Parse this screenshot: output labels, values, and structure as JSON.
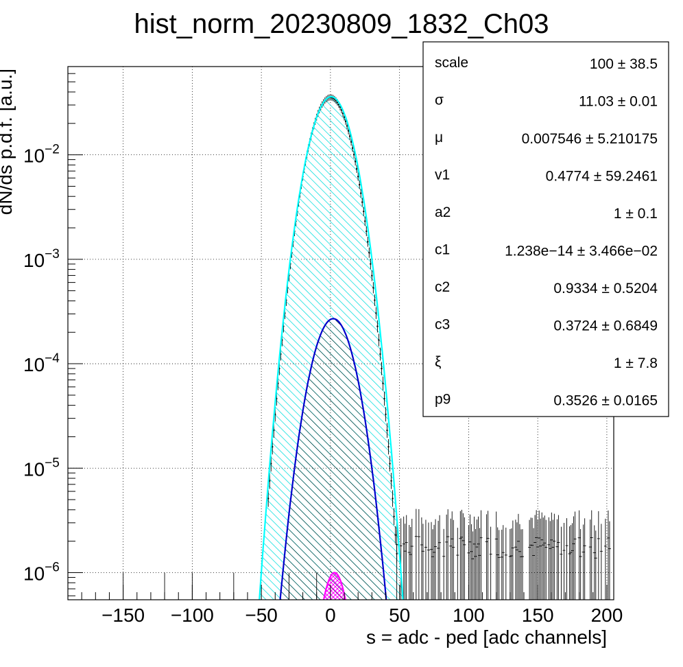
{
  "chart_data": {
    "type": "histogram-with-fit",
    "title": "hist_norm_20230809_1832_Ch03",
    "xlabel": "s = adc - ped [adc channels]",
    "ylabel": "dN/ds p.d.f. [a.u.]",
    "xlim": [
      -190,
      205
    ],
    "ylim": [
      5.5e-07,
      0.07
    ],
    "yscale": "log",
    "grid": true,
    "x_ticks": [
      -150,
      -100,
      -50,
      0,
      50,
      100,
      150,
      200
    ],
    "x_tick_labels": [
      "−150",
      "−100",
      "−50",
      "0",
      "50",
      "100",
      "150",
      "200"
    ],
    "y_ticks": [
      {
        "value": 0.01,
        "base": "10",
        "exp": "−2"
      },
      {
        "value": 0.001,
        "base": "10",
        "exp": "−3"
      },
      {
        "value": 0.0001,
        "base": "10",
        "exp": "−4"
      },
      {
        "value": 1e-05,
        "base": "10",
        "exp": "−5"
      },
      {
        "value": 1e-06,
        "base": "10",
        "exp": "−6"
      }
    ],
    "series": [
      {
        "kind": "gaussian",
        "amplitude": 0.036,
        "mean": 0.5,
        "sigma": 11.03,
        "color": "#00ffff",
        "fill": "hatch-cyan",
        "xrange": [
          -52,
          54
        ]
      },
      {
        "kind": "gaussian",
        "amplitude": 0.00027,
        "mean": 2,
        "sigma": 10.9,
        "color": "#0000cc",
        "fill": "hatch-black",
        "xrange": [
          -40,
          42
        ]
      },
      {
        "kind": "gaussian",
        "amplitude": 1e-06,
        "mean": 3,
        "sigma": 7.2,
        "color": "#ff00ff",
        "fill": "crosshatch-magenta",
        "xrange": [
          -10,
          16
        ]
      }
    ],
    "histogram": {
      "core_gaussian": {
        "amplitude": 0.0355,
        "mean": 0,
        "sigma": 10.7
      },
      "background_level": 1.5e-06,
      "background_xrange": [
        48,
        202
      ]
    }
  },
  "stats_box": [
    {
      "name": "scale",
      "value": "100 ± 38.5"
    },
    {
      "name": "σ",
      "value": "11.03 ± 0.01"
    },
    {
      "name": "μ",
      "value": "0.007546 ± 5.210175"
    },
    {
      "name": "v1",
      "value": "0.4774 ± 59.2461"
    },
    {
      "name": "a2",
      "value": "1 ± 0.1"
    },
    {
      "name": "c1",
      "value": "1.238e−14 ± 3.466e−02"
    },
    {
      "name": "c2",
      "value": "0.9334 ± 0.5204"
    },
    {
      "name": "c3",
      "value": "0.3724 ± 0.6849"
    },
    {
      "name": "ξ",
      "value": "1 ± 7.8"
    },
    {
      "name": "p9",
      "value": "0.3526 ± 0.0165"
    }
  ]
}
